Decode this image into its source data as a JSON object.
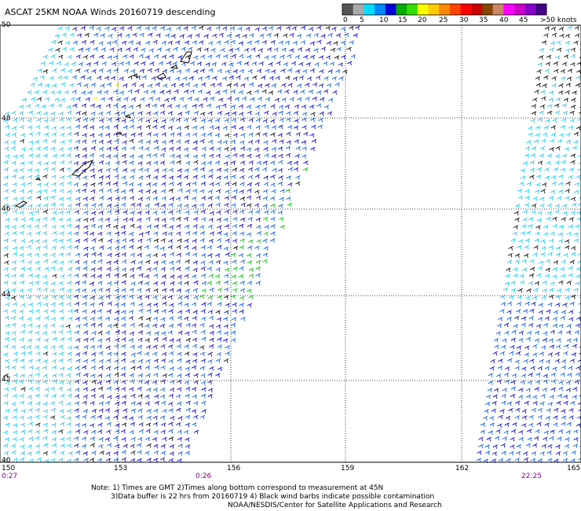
{
  "title": "ASCAT 25KM NOAA Winds 20160719 descending",
  "legend": {
    "ticks": [
      "0",
      "5",
      "10",
      "15",
      "20",
      "25",
      "30",
      "35",
      "40",
      "45",
      ">50 knots"
    ],
    "colors": [
      "#555555",
      "#aaaaaa",
      "#00ddff",
      "#0088ff",
      "#0000dd",
      "#00aa00",
      "#33dd00",
      "#ffff00",
      "#ffcc00",
      "#ff8800",
      "#ff4400",
      "#ff0000",
      "#cc0000",
      "#884400",
      "#cc8866",
      "#ff00ff",
      "#cc00cc",
      "#8800cc",
      "#440088"
    ]
  },
  "axes": {
    "lat_labels": [
      "50",
      "48",
      "46",
      "44",
      "42",
      "40"
    ],
    "lon_labels": [
      "150",
      "153",
      "156",
      "159",
      "162",
      "165"
    ]
  },
  "time_labels": [
    "0:27",
    "0:26",
    "22:25"
  ],
  "notes": {
    "line1": "Note: 1) Times are GMT 2)Times along bottom correspond to measurement at 45N",
    "line2": "3)Data buffer is 22 hrs from 20160719 4) Black wind barbs indicate possible contamination",
    "line3": "NOAA/NESDIS/Center for Satellite Applications and Research"
  },
  "wind_colors": {
    "light_blue": "#00ccff",
    "cyan": "#33bbdd",
    "blue": "#0000cc",
    "mid_blue": "#0055ee",
    "green": "#00bb00",
    "yellow": "#ffee00",
    "black": "#000000"
  }
}
